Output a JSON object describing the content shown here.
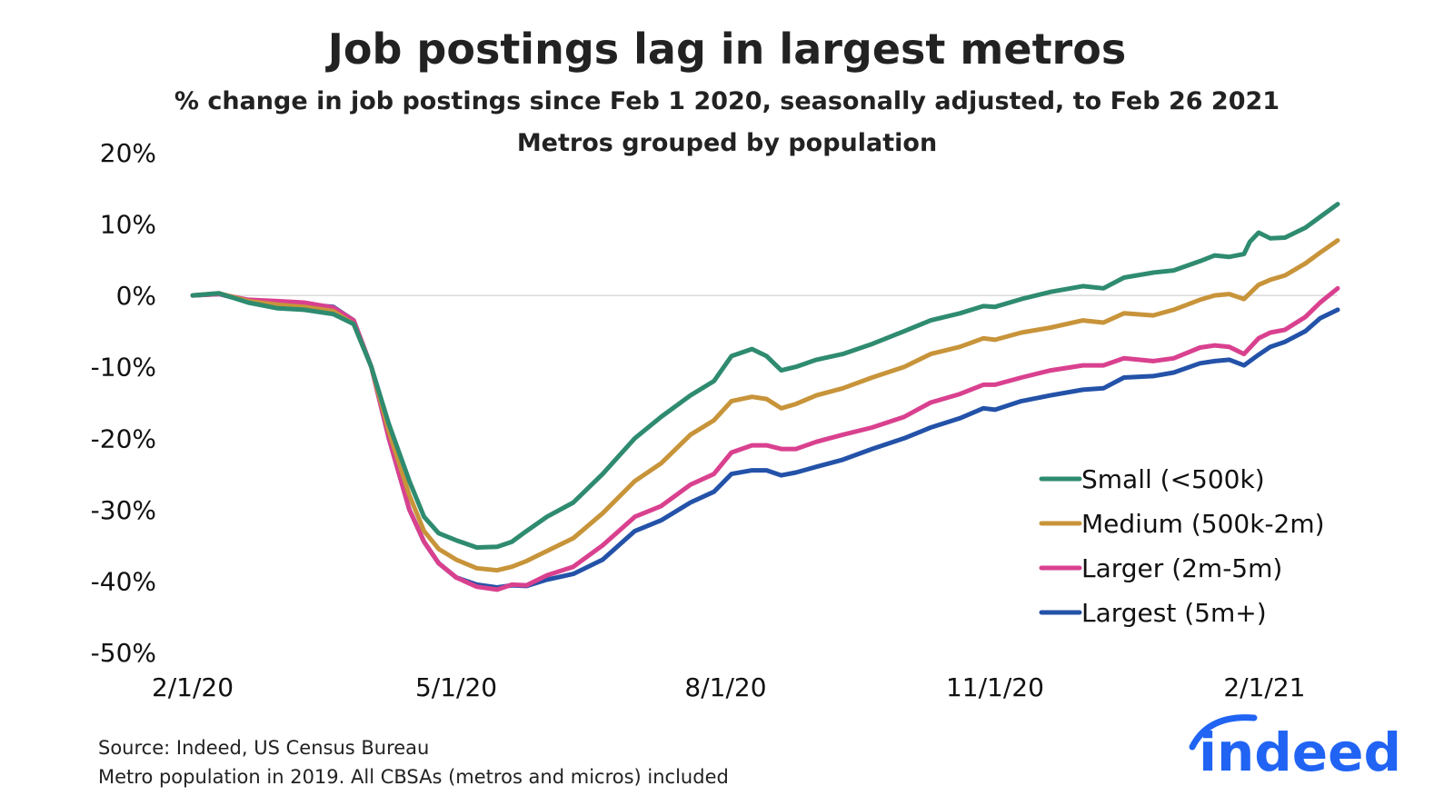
{
  "colors": {
    "small": "#2e8b70",
    "medium": "#c8943a",
    "larger": "#d9418f",
    "largest": "#2352a8",
    "logo": "#2164f3"
  },
  "logo": {
    "text": "indeed"
  },
  "source_note": "Source: Indeed, US Census Bureau",
  "population_note": "Metro population in 2019. All CBSAs (metros and micros) included",
  "chart_data": {
    "type": "line",
    "title": "Job postings lag in largest metros",
    "subtitle": "% change in job postings since Feb 1 2020, seasonally adjusted, to Feb 26 2021",
    "subtitle2": "Metros grouped by population",
    "xlabel": "",
    "ylabel": "",
    "ylim": [
      -50,
      20
    ],
    "yticks": [
      20,
      10,
      0,
      -10,
      -20,
      -30,
      -40,
      -50
    ],
    "ytick_labels": [
      "20%",
      "10%",
      "0%",
      "-10%",
      "-20%",
      "-30%",
      "-40%",
      "-50%"
    ],
    "xlim": [
      "2020-02-01",
      "2021-02-26"
    ],
    "xticks": [
      "2020-02-01",
      "2020-05-01",
      "2020-08-01",
      "2020-11-01",
      "2021-02-01"
    ],
    "xtick_labels": [
      "2/1/20",
      "5/1/20",
      "8/1/20",
      "11/1/20",
      "2/1/21"
    ],
    "grid": false,
    "zero_line": true,
    "legend_position": "bottom-right",
    "series": [
      {
        "name": "Small (<500k)",
        "color_key": "small",
        "points": [
          [
            "2020-02-01",
            0
          ],
          [
            "2020-02-10",
            0.3
          ],
          [
            "2020-02-20",
            -1
          ],
          [
            "2020-03-01",
            -1.8
          ],
          [
            "2020-03-10",
            -2
          ],
          [
            "2020-03-20",
            -2.6
          ],
          [
            "2020-03-27",
            -4
          ],
          [
            "2020-04-02",
            -10
          ],
          [
            "2020-04-08",
            -18
          ],
          [
            "2020-04-15",
            -26
          ],
          [
            "2020-04-20",
            -31
          ],
          [
            "2020-04-25",
            -33.3
          ],
          [
            "2020-05-01",
            -34.3
          ],
          [
            "2020-05-08",
            -35.3
          ],
          [
            "2020-05-15",
            -35.2
          ],
          [
            "2020-05-20",
            -34.5
          ],
          [
            "2020-05-25",
            -33
          ],
          [
            "2020-06-01",
            -31
          ],
          [
            "2020-06-10",
            -29
          ],
          [
            "2020-06-20",
            -25
          ],
          [
            "2020-07-01",
            -20
          ],
          [
            "2020-07-10",
            -17
          ],
          [
            "2020-07-20",
            -14
          ],
          [
            "2020-07-28",
            -12
          ],
          [
            "2020-08-03",
            -8.5
          ],
          [
            "2020-08-10",
            -7.5
          ],
          [
            "2020-08-15",
            -8.5
          ],
          [
            "2020-08-20",
            -10.5
          ],
          [
            "2020-08-25",
            -10
          ],
          [
            "2020-09-01",
            -9
          ],
          [
            "2020-09-10",
            -8.2
          ],
          [
            "2020-09-20",
            -6.8
          ],
          [
            "2020-10-01",
            -5
          ],
          [
            "2020-10-10",
            -3.5
          ],
          [
            "2020-10-20",
            -2.5
          ],
          [
            "2020-10-28",
            -1.5
          ],
          [
            "2020-11-01",
            -1.6
          ],
          [
            "2020-11-10",
            -0.5
          ],
          [
            "2020-11-20",
            0.5
          ],
          [
            "2020-12-01",
            1.3
          ],
          [
            "2020-12-08",
            1
          ],
          [
            "2020-12-15",
            2.5
          ],
          [
            "2020-12-25",
            3.2
          ],
          [
            "2021-01-01",
            3.5
          ],
          [
            "2021-01-10",
            4.8
          ],
          [
            "2021-01-15",
            5.6
          ],
          [
            "2021-01-20",
            5.4
          ],
          [
            "2021-01-25",
            5.8
          ],
          [
            "2021-01-27",
            7.5
          ],
          [
            "2021-01-30",
            8.8
          ],
          [
            "2021-02-03",
            8
          ],
          [
            "2021-02-08",
            8.1
          ],
          [
            "2021-02-15",
            9.5
          ],
          [
            "2021-02-20",
            11
          ],
          [
            "2021-02-26",
            12.8
          ]
        ]
      },
      {
        "name": "Medium (500k-2m)",
        "color_key": "medium",
        "points": [
          [
            "2020-02-01",
            0
          ],
          [
            "2020-02-10",
            0.3
          ],
          [
            "2020-02-20",
            -0.8
          ],
          [
            "2020-03-01",
            -1.3
          ],
          [
            "2020-03-10",
            -1.6
          ],
          [
            "2020-03-20",
            -2.2
          ],
          [
            "2020-03-27",
            -4
          ],
          [
            "2020-04-02",
            -10
          ],
          [
            "2020-04-08",
            -19
          ],
          [
            "2020-04-15",
            -28
          ],
          [
            "2020-04-20",
            -33
          ],
          [
            "2020-04-25",
            -35.5
          ],
          [
            "2020-05-01",
            -37
          ],
          [
            "2020-05-08",
            -38.2
          ],
          [
            "2020-05-15",
            -38.5
          ],
          [
            "2020-05-20",
            -38
          ],
          [
            "2020-05-25",
            -37.2
          ],
          [
            "2020-06-01",
            -35.8
          ],
          [
            "2020-06-10",
            -34
          ],
          [
            "2020-06-20",
            -30.5
          ],
          [
            "2020-07-01",
            -26
          ],
          [
            "2020-07-10",
            -23.5
          ],
          [
            "2020-07-20",
            -19.5
          ],
          [
            "2020-07-28",
            -17.5
          ],
          [
            "2020-08-03",
            -14.8
          ],
          [
            "2020-08-10",
            -14.2
          ],
          [
            "2020-08-15",
            -14.5
          ],
          [
            "2020-08-20",
            -15.8
          ],
          [
            "2020-08-25",
            -15.2
          ],
          [
            "2020-09-01",
            -14
          ],
          [
            "2020-09-10",
            -13
          ],
          [
            "2020-09-20",
            -11.5
          ],
          [
            "2020-10-01",
            -10
          ],
          [
            "2020-10-10",
            -8.2
          ],
          [
            "2020-10-20",
            -7.2
          ],
          [
            "2020-10-28",
            -6
          ],
          [
            "2020-11-01",
            -6.2
          ],
          [
            "2020-11-10",
            -5.2
          ],
          [
            "2020-11-20",
            -4.5
          ],
          [
            "2020-12-01",
            -3.5
          ],
          [
            "2020-12-08",
            -3.8
          ],
          [
            "2020-12-15",
            -2.5
          ],
          [
            "2020-12-25",
            -2.8
          ],
          [
            "2021-01-01",
            -2
          ],
          [
            "2021-01-10",
            -0.6
          ],
          [
            "2021-01-15",
            0
          ],
          [
            "2021-01-20",
            0.2
          ],
          [
            "2021-01-25",
            -0.5
          ],
          [
            "2021-01-30",
            1.5
          ],
          [
            "2021-02-03",
            2.2
          ],
          [
            "2021-02-08",
            2.8
          ],
          [
            "2021-02-15",
            4.5
          ],
          [
            "2021-02-20",
            6
          ],
          [
            "2021-02-26",
            7.7
          ]
        ]
      },
      {
        "name": "Larger (2m-5m)",
        "color_key": "larger",
        "points": [
          [
            "2020-02-01",
            0
          ],
          [
            "2020-02-10",
            0.2
          ],
          [
            "2020-02-20",
            -0.6
          ],
          [
            "2020-03-01",
            -0.8
          ],
          [
            "2020-03-10",
            -1
          ],
          [
            "2020-03-20",
            -1.7
          ],
          [
            "2020-03-27",
            -3.5
          ],
          [
            "2020-04-02",
            -10
          ],
          [
            "2020-04-08",
            -20
          ],
          [
            "2020-04-15",
            -30
          ],
          [
            "2020-04-20",
            -34.5
          ],
          [
            "2020-04-25",
            -37.5
          ],
          [
            "2020-05-01",
            -39.5
          ],
          [
            "2020-05-08",
            -40.8
          ],
          [
            "2020-05-15",
            -41.2
          ],
          [
            "2020-05-20",
            -40.5
          ],
          [
            "2020-05-25",
            -40.6
          ],
          [
            "2020-06-01",
            -39.2
          ],
          [
            "2020-06-10",
            -38
          ],
          [
            "2020-06-20",
            -35
          ],
          [
            "2020-07-01",
            -31
          ],
          [
            "2020-07-10",
            -29.5
          ],
          [
            "2020-07-20",
            -26.5
          ],
          [
            "2020-07-28",
            -25
          ],
          [
            "2020-08-03",
            -22
          ],
          [
            "2020-08-10",
            -21
          ],
          [
            "2020-08-15",
            -21
          ],
          [
            "2020-08-20",
            -21.5
          ],
          [
            "2020-08-25",
            -21.5
          ],
          [
            "2020-09-01",
            -20.5
          ],
          [
            "2020-09-10",
            -19.5
          ],
          [
            "2020-09-20",
            -18.5
          ],
          [
            "2020-10-01",
            -17
          ],
          [
            "2020-10-10",
            -15
          ],
          [
            "2020-10-20",
            -13.8
          ],
          [
            "2020-10-28",
            -12.5
          ],
          [
            "2020-11-01",
            -12.5
          ],
          [
            "2020-11-10",
            -11.5
          ],
          [
            "2020-11-20",
            -10.5
          ],
          [
            "2020-12-01",
            -9.8
          ],
          [
            "2020-12-08",
            -9.8
          ],
          [
            "2020-12-15",
            -8.8
          ],
          [
            "2020-12-25",
            -9.2
          ],
          [
            "2021-01-01",
            -8.8
          ],
          [
            "2021-01-10",
            -7.3
          ],
          [
            "2021-01-15",
            -7
          ],
          [
            "2021-01-20",
            -7.2
          ],
          [
            "2021-01-25",
            -8.2
          ],
          [
            "2021-01-30",
            -6
          ],
          [
            "2021-02-03",
            -5.2
          ],
          [
            "2021-02-08",
            -4.8
          ],
          [
            "2021-02-15",
            -3
          ],
          [
            "2021-02-20",
            -1
          ],
          [
            "2021-02-26",
            1
          ]
        ]
      },
      {
        "name": "Largest (5m+)",
        "color_key": "largest",
        "points": [
          [
            "2020-02-01",
            0
          ],
          [
            "2020-02-10",
            0.2
          ],
          [
            "2020-02-20",
            -0.8
          ],
          [
            "2020-03-01",
            -1.1
          ],
          [
            "2020-03-10",
            -1.2
          ],
          [
            "2020-03-20",
            -1.6
          ],
          [
            "2020-03-27",
            -3.5
          ],
          [
            "2020-04-02",
            -10
          ],
          [
            "2020-04-08",
            -20
          ],
          [
            "2020-04-15",
            -30
          ],
          [
            "2020-04-20",
            -34.5
          ],
          [
            "2020-04-25",
            -37.5
          ],
          [
            "2020-05-01",
            -39.5
          ],
          [
            "2020-05-08",
            -40.5
          ],
          [
            "2020-05-15",
            -40.9
          ],
          [
            "2020-05-20",
            -40.6
          ],
          [
            "2020-05-25",
            -40.7
          ],
          [
            "2020-06-01",
            -39.8
          ],
          [
            "2020-06-10",
            -39
          ],
          [
            "2020-06-20",
            -37
          ],
          [
            "2020-07-01",
            -33
          ],
          [
            "2020-07-10",
            -31.5
          ],
          [
            "2020-07-20",
            -29
          ],
          [
            "2020-07-28",
            -27.5
          ],
          [
            "2020-08-03",
            -25
          ],
          [
            "2020-08-10",
            -24.5
          ],
          [
            "2020-08-15",
            -24.5
          ],
          [
            "2020-08-20",
            -25.2
          ],
          [
            "2020-08-25",
            -24.8
          ],
          [
            "2020-09-01",
            -24
          ],
          [
            "2020-09-10",
            -23
          ],
          [
            "2020-09-20",
            -21.5
          ],
          [
            "2020-10-01",
            -20
          ],
          [
            "2020-10-10",
            -18.5
          ],
          [
            "2020-10-20",
            -17.2
          ],
          [
            "2020-10-28",
            -15.8
          ],
          [
            "2020-11-01",
            -16
          ],
          [
            "2020-11-10",
            -14.8
          ],
          [
            "2020-11-20",
            -14
          ],
          [
            "2020-12-01",
            -13.2
          ],
          [
            "2020-12-08",
            -13
          ],
          [
            "2020-12-15",
            -11.5
          ],
          [
            "2020-12-25",
            -11.3
          ],
          [
            "2021-01-01",
            -10.8
          ],
          [
            "2021-01-10",
            -9.5
          ],
          [
            "2021-01-15",
            -9.2
          ],
          [
            "2021-01-20",
            -9
          ],
          [
            "2021-01-25",
            -9.8
          ],
          [
            "2021-01-30",
            -8.3
          ],
          [
            "2021-02-03",
            -7.2
          ],
          [
            "2021-02-08",
            -6.5
          ],
          [
            "2021-02-15",
            -5
          ],
          [
            "2021-02-20",
            -3.2
          ],
          [
            "2021-02-26",
            -2
          ]
        ]
      }
    ]
  }
}
